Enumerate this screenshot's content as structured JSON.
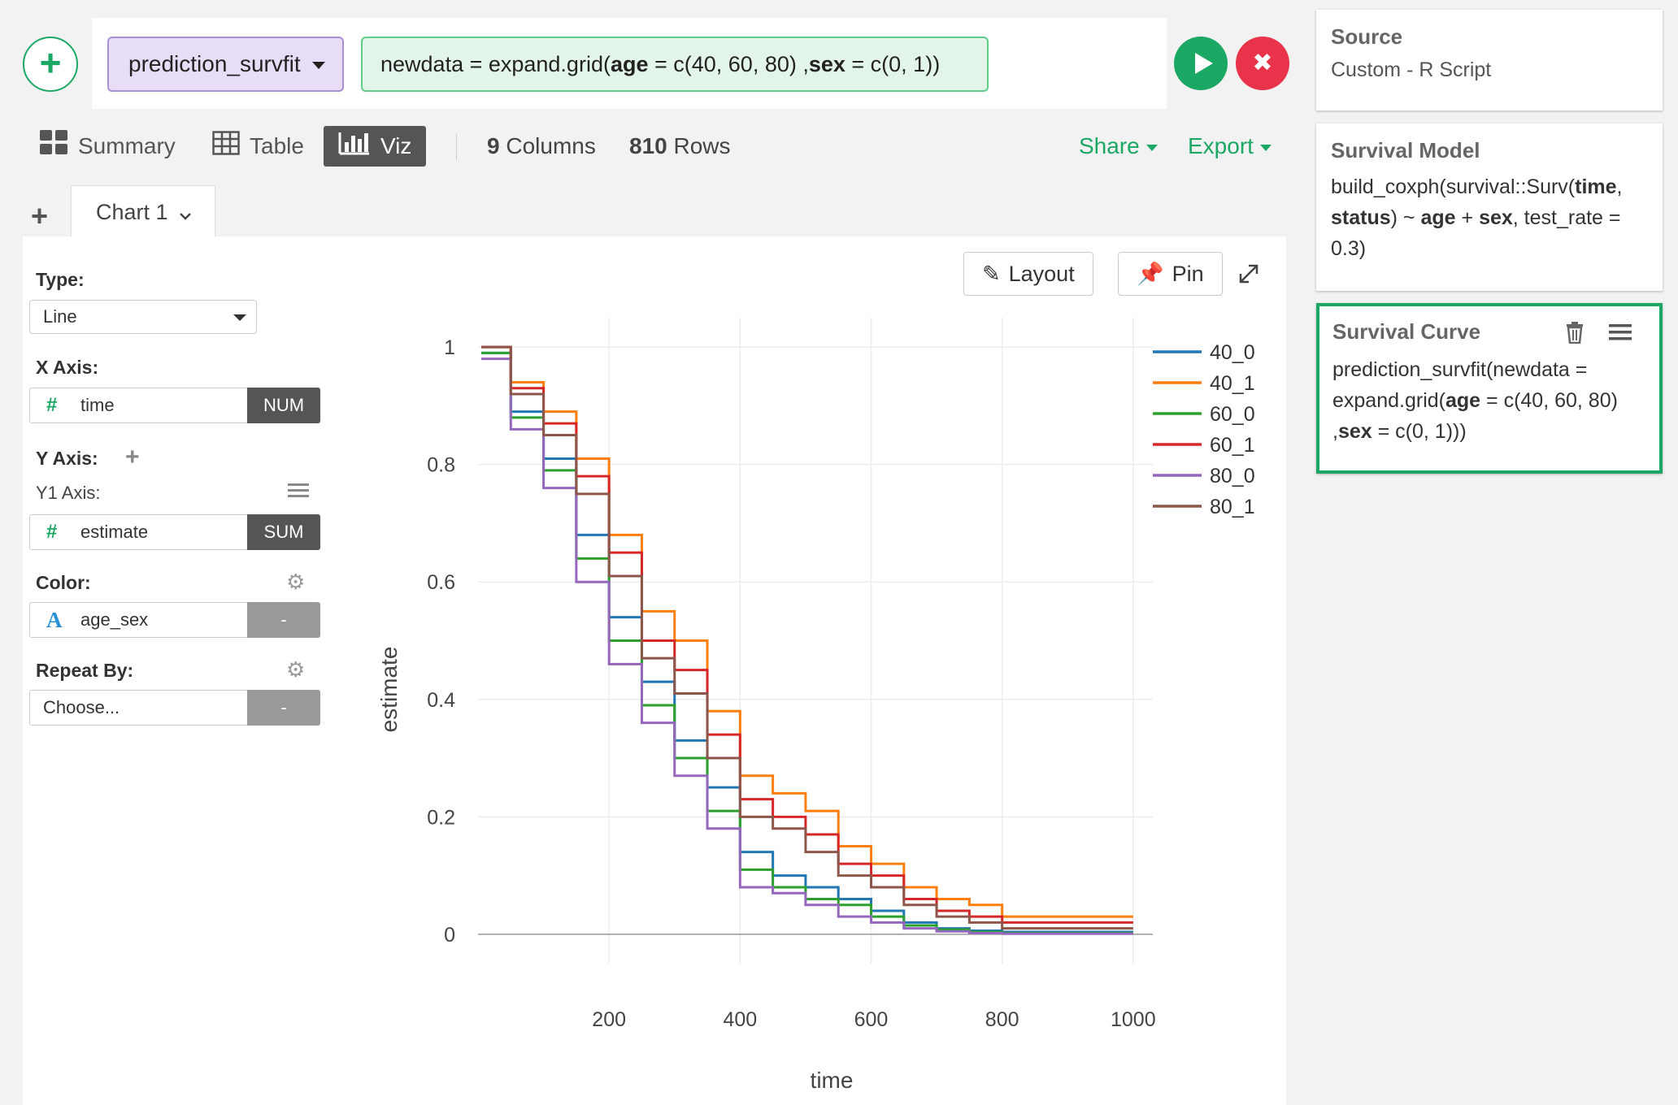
{
  "command": {
    "function_name": "prediction_survfit",
    "expression_parts": [
      {
        "t": "newdata = expand.grid(",
        "b": false
      },
      {
        "t": "age",
        "b": true
      },
      {
        "t": " = c(40, 60, 80) ,",
        "b": false
      },
      {
        "t": "sex",
        "b": true
      },
      {
        "t": " = c(0, 1))",
        "b": false
      }
    ],
    "run_icon": "play-icon",
    "cancel_icon": "close-icon"
  },
  "view_tabs": {
    "summary": "Summary",
    "table": "Table",
    "viz": "Viz"
  },
  "meta": {
    "columns_count": "9",
    "columns_label": "Columns",
    "rows_count": "810",
    "rows_label": "Rows"
  },
  "menus": {
    "share": "Share",
    "export": "Export"
  },
  "chart_tab": {
    "label": "Chart 1"
  },
  "settings": {
    "type_label": "Type:",
    "type_value": "Line",
    "x_axis_label": "X Axis:",
    "x_field": "time",
    "x_agg": "NUM",
    "y_axis_label": "Y Axis:",
    "y1_label": "Y1 Axis:",
    "y_field": "estimate",
    "y_agg": "SUM",
    "color_label": "Color:",
    "color_field": "age_sex",
    "color_agg": "-",
    "repeat_label": "Repeat By:",
    "repeat_value": "Choose...",
    "repeat_agg": "-"
  },
  "toolbar": {
    "layout": "Layout",
    "pin": "Pin"
  },
  "sidebar": {
    "source_title": "Source",
    "source_value": "Custom - R Script",
    "model_title": "Survival Model",
    "model_parts": [
      {
        "t": "build_coxph(survival::Surv(",
        "b": false
      },
      {
        "t": "time",
        "b": true
      },
      {
        "t": ", ",
        "b": false
      },
      {
        "t": "status",
        "b": true
      },
      {
        "t": ") ~ ",
        "b": false
      },
      {
        "t": "age",
        "b": true
      },
      {
        "t": " + ",
        "b": false
      },
      {
        "t": "sex",
        "b": true
      },
      {
        "t": ", test_rate = 0.3)",
        "b": false
      }
    ],
    "curve_title": "Survival Curve",
    "curve_parts": [
      {
        "t": "prediction_survfit(newdata = expand.grid(",
        "b": false
      },
      {
        "t": "age",
        "b": true
      },
      {
        "t": " = c(40, 60, 80) ,",
        "b": false
      },
      {
        "t": "sex",
        "b": true
      },
      {
        "t": " = c(0, 1)))",
        "b": false
      }
    ]
  },
  "colors": {
    "accent_green": "#1aa864",
    "danger_red": "#e8334a",
    "function_purple": "#e8ddf6"
  },
  "chart_data": {
    "type": "line",
    "xlabel": "time",
    "ylabel": "estimate",
    "xlim": [
      0,
      1030
    ],
    "ylim": [
      -0.05,
      1.05
    ],
    "xticks": [
      200,
      400,
      600,
      800,
      1000
    ],
    "yticks": [
      0,
      0.2,
      0.4,
      0.6,
      0.8,
      1
    ],
    "ytick_labels": [
      "0",
      "0.2",
      "0.4",
      "0.6",
      "0.8",
      "1"
    ],
    "legend_position": "top-right",
    "grid": true,
    "x": [
      5,
      50,
      100,
      150,
      200,
      250,
      300,
      350,
      400,
      450,
      500,
      550,
      600,
      650,
      700,
      750,
      800,
      850,
      900,
      950,
      1000
    ],
    "series": [
      {
        "name": "40_0",
        "color": "#1f77b4",
        "values": [
          0.99,
          0.89,
          0.81,
          0.68,
          0.54,
          0.43,
          0.33,
          0.25,
          0.14,
          0.1,
          0.08,
          0.06,
          0.04,
          0.02,
          0.01,
          0.006,
          0.004,
          0.004,
          0.004,
          0.004,
          0.004
        ]
      },
      {
        "name": "40_1",
        "color": "#ff7f0e",
        "values": [
          1.0,
          0.94,
          0.89,
          0.81,
          0.68,
          0.55,
          0.5,
          0.38,
          0.27,
          0.24,
          0.21,
          0.15,
          0.12,
          0.08,
          0.06,
          0.05,
          0.03,
          0.03,
          0.03,
          0.03,
          0.03
        ]
      },
      {
        "name": "60_0",
        "color": "#2ca02c",
        "values": [
          0.99,
          0.88,
          0.79,
          0.64,
          0.5,
          0.39,
          0.3,
          0.21,
          0.11,
          0.08,
          0.06,
          0.05,
          0.03,
          0.015,
          0.008,
          0.004,
          0.002,
          0.002,
          0.002,
          0.002,
          0.002
        ]
      },
      {
        "name": "60_1",
        "color": "#d62728",
        "values": [
          1.0,
          0.93,
          0.87,
          0.78,
          0.65,
          0.5,
          0.45,
          0.34,
          0.23,
          0.2,
          0.17,
          0.12,
          0.1,
          0.06,
          0.04,
          0.03,
          0.02,
          0.02,
          0.02,
          0.02,
          0.02
        ]
      },
      {
        "name": "80_0",
        "color": "#9467bd",
        "values": [
          0.98,
          0.86,
          0.76,
          0.6,
          0.46,
          0.36,
          0.27,
          0.18,
          0.08,
          0.07,
          0.05,
          0.03,
          0.02,
          0.01,
          0.005,
          0.002,
          0.001,
          0.001,
          0.001,
          0.001,
          0.001
        ]
      },
      {
        "name": "80_1",
        "color": "#8c564b",
        "values": [
          1.0,
          0.92,
          0.85,
          0.75,
          0.61,
          0.47,
          0.41,
          0.3,
          0.2,
          0.18,
          0.14,
          0.1,
          0.08,
          0.05,
          0.03,
          0.02,
          0.01,
          0.01,
          0.01,
          0.01,
          0.01
        ]
      }
    ]
  }
}
